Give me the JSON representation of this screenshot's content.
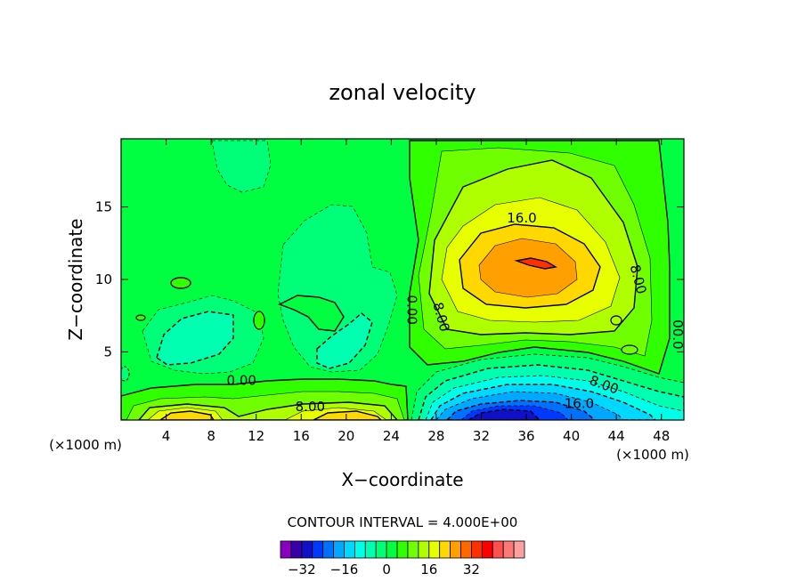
{
  "chart_data": {
    "type": "heatmap",
    "title": "zonal velocity",
    "xlabel": "X−coordinate",
    "ylabel": "Z−coordinate",
    "x_unit": "(×1000 m)",
    "x_unit_left": "(×1000 m)",
    "xlim": [
      0,
      50
    ],
    "ylim": [
      0.3,
      19.7
    ],
    "x_ticks": [
      4,
      8,
      12,
      16,
      20,
      24,
      28,
      32,
      36,
      40,
      44,
      48
    ],
    "y_ticks": [
      5,
      10,
      15
    ],
    "grid": false,
    "contour_interval_text": "CONTOUR INTERVAL = 4.000E+00",
    "contour_interval": 4,
    "contour_labels": [
      {
        "text": "16.0",
        "x": 35.6,
        "y": 14.2
      },
      {
        "text": "8.00",
        "x": 45.9,
        "y": 10.0
      },
      {
        "text": "0.00",
        "x": 25.8,
        "y": 7.9
      },
      {
        "text": "8.00",
        "x": 28.4,
        "y": 7.4
      },
      {
        "text": "00.0",
        "x": 49.4,
        "y": 6.2
      },
      {
        "text": "0.00",
        "x": 10.7,
        "y": 3.0
      },
      {
        "text": "8.00",
        "x": 42.9,
        "y": 2.7
      },
      {
        "text": "8.00",
        "x": 16.8,
        "y": 1.2
      },
      {
        "text": "16.0",
        "x": 40.7,
        "y": 1.4
      }
    ],
    "features": [
      {
        "kind": "jet-max",
        "x": 35.5,
        "z": 11.2,
        "peak": 28
      },
      {
        "kind": "jet-min",
        "x": 35,
        "z": 0.9,
        "min": -24
      },
      {
        "kind": "surface-max",
        "x": 5.5,
        "z": 0.7,
        "peak": 16
      },
      {
        "kind": "surface-max",
        "x": 21,
        "z": 0.7,
        "peak": 16
      },
      {
        "kind": "weak-negative",
        "x": 8,
        "z": 6,
        "min": -4
      },
      {
        "kind": "weak-negative",
        "x": 20,
        "z": 5,
        "min": -8
      }
    ],
    "colorbar": {
      "colors": [
        "#8800c0",
        "#3a00a8",
        "#1010c8",
        "#0038ff",
        "#0070ff",
        "#00a8ff",
        "#00d8ff",
        "#00ffe8",
        "#00ffb0",
        "#00ff78",
        "#00ff40",
        "#30ff00",
        "#70ff00",
        "#b0ff00",
        "#e8ff00",
        "#ffd800",
        "#ffa000",
        "#ff6800",
        "#ff3000",
        "#ff0000",
        "#ff5050",
        "#ff7878",
        "#ffa0a0"
      ],
      "tick_labels": [
        "−32",
        "−16",
        "0",
        "16",
        "32"
      ],
      "tick_values": [
        -32,
        -16,
        0,
        16,
        32
      ]
    }
  }
}
